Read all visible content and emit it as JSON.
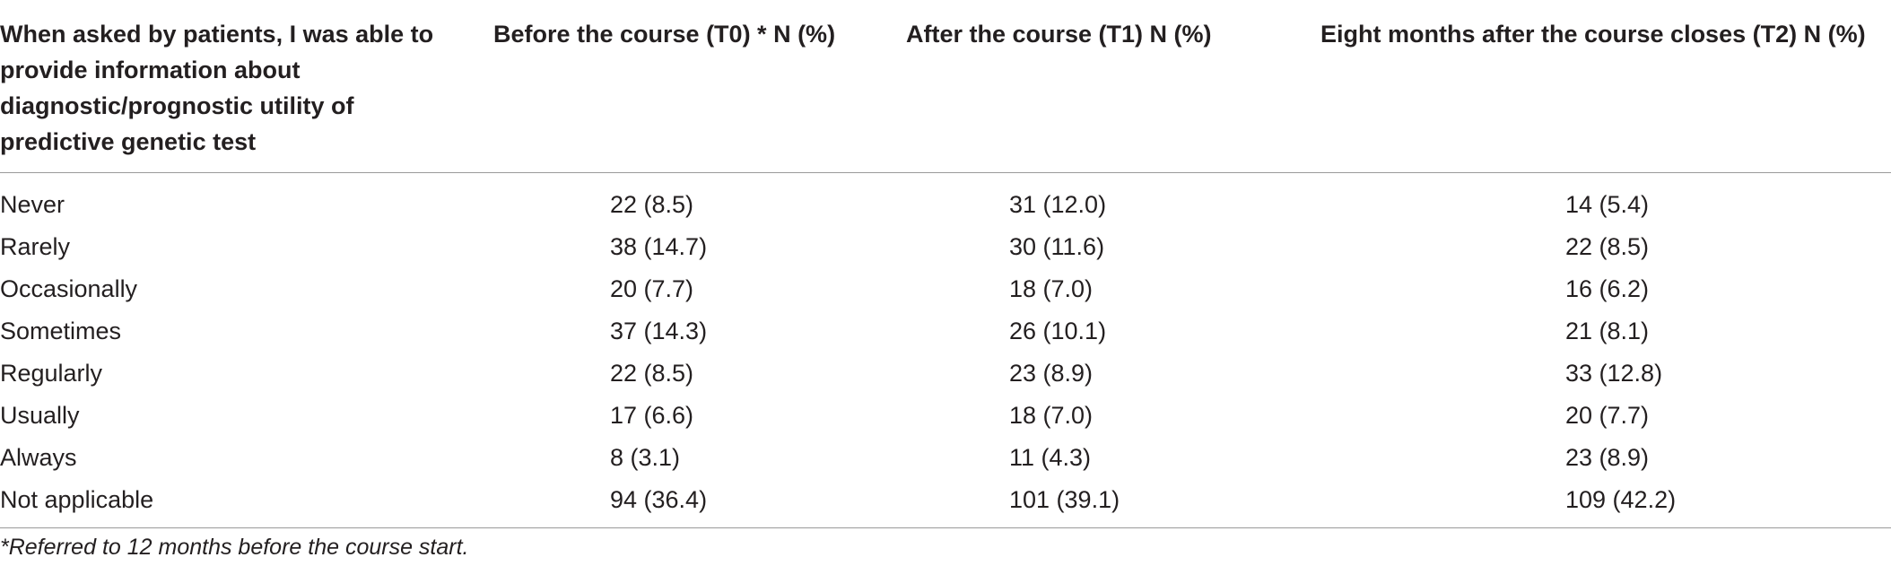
{
  "table": {
    "headers": [
      "When asked by patients, I was able to provide information about diagnostic/prognostic utility of predictive genetic test",
      "Before the course (T0) * N (%)",
      "After the course (T1) N (%)",
      "Eight months after the course closes (T2) N (%)"
    ],
    "rows": [
      [
        "Never",
        "22 (8.5)",
        "31 (12.0)",
        "14 (5.4)"
      ],
      [
        "Rarely",
        "38 (14.7)",
        "30 (11.6)",
        "22 (8.5)"
      ],
      [
        "Occasionally",
        "20 (7.7)",
        "18 (7.0)",
        "16 (6.2)"
      ],
      [
        "Sometimes",
        "37 (14.3)",
        "26 (10.1)",
        "21 (8.1)"
      ],
      [
        "Regularly",
        "22 (8.5)",
        "23 (8.9)",
        "33 (12.8)"
      ],
      [
        "Usually",
        "17 (6.6)",
        "18 (7.0)",
        "20 (7.7)"
      ],
      [
        "Always",
        "8 (3.1)",
        "11 (4.3)",
        "23 (8.9)"
      ],
      [
        "Not applicable",
        "94 (36.4)",
        "101 (39.1)",
        "109 (42.2)"
      ]
    ]
  },
  "footnote": "*Referred to 12 months before the course start."
}
